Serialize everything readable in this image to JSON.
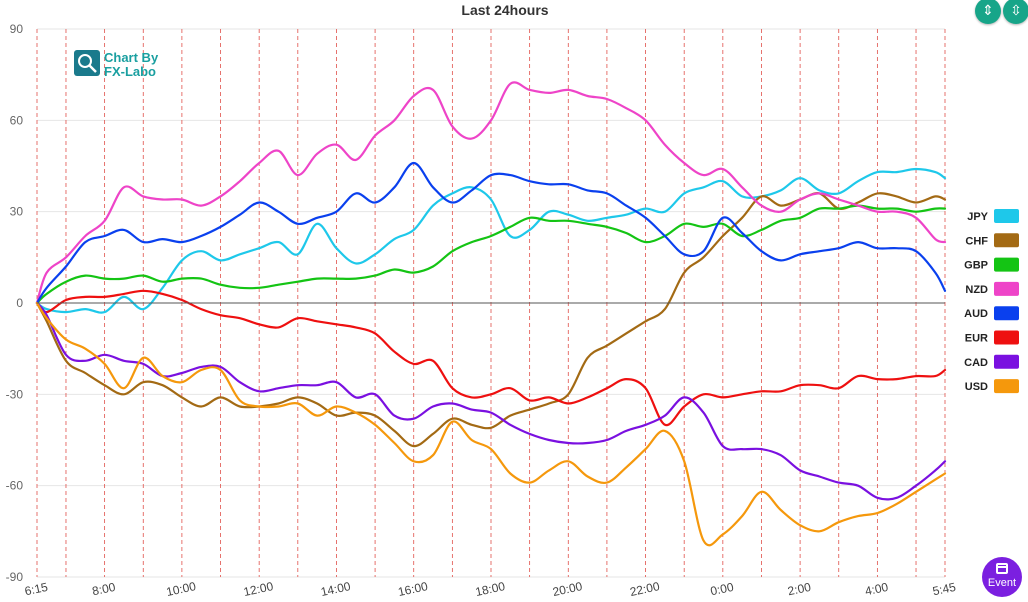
{
  "toolbar": {
    "collapse_icon": "compress-vertical-icon",
    "expand_icon": "expand-vertical-icon"
  },
  "event_button": {
    "label": "Event",
    "icon": "calendar-icon"
  },
  "watermark": {
    "line1": "Chart By",
    "line2": "FX-Labo"
  },
  "chart_data": {
    "type": "line",
    "title": "Last 24hours",
    "ylim": [
      -90,
      90
    ],
    "yticks": [
      90,
      60,
      30,
      0,
      -30,
      -60,
      -90
    ],
    "xlim": [
      6.25,
      29.75
    ],
    "xticks": [
      {
        "value": 6.25,
        "label": "6:15"
      },
      {
        "value": 8,
        "label": "8:00"
      },
      {
        "value": 10,
        "label": "10:00"
      },
      {
        "value": 12,
        "label": "12:00"
      },
      {
        "value": 14,
        "label": "14:00"
      },
      {
        "value": 16,
        "label": "16:00"
      },
      {
        "value": 18,
        "label": "18:00"
      },
      {
        "value": 20,
        "label": "20:00"
      },
      {
        "value": 22,
        "label": "22:00"
      },
      {
        "value": 24,
        "label": "0:00"
      },
      {
        "value": 26,
        "label": "2:00"
      },
      {
        "value": 28,
        "label": "4:00"
      },
      {
        "value": 29.75,
        "label": "5:45"
      }
    ],
    "vlines": [
      6.25,
      7,
      8,
      9,
      10,
      11,
      12,
      13,
      14,
      15,
      16,
      17,
      18,
      19,
      20,
      21,
      22,
      23,
      24,
      25,
      26,
      27,
      28,
      29,
      29.75
    ],
    "grid": true,
    "legend_position": "right",
    "x": [
      6.25,
      6.5,
      7,
      7.5,
      8,
      8.5,
      9,
      9.5,
      10,
      10.5,
      11,
      11.5,
      12,
      12.5,
      13,
      13.5,
      14,
      14.5,
      15,
      15.5,
      16,
      16.5,
      17,
      17.5,
      18,
      18.5,
      19,
      19.5,
      20,
      20.5,
      21,
      21.5,
      22,
      22.5,
      23,
      23.5,
      24,
      24.5,
      25,
      25.5,
      26,
      26.5,
      27,
      27.5,
      28,
      28.5,
      29,
      29.5,
      29.75
    ],
    "series": [
      {
        "name": "JPY",
        "color": "#1ec8ea",
        "values": [
          0,
          -2,
          -3,
          -2,
          -3,
          2,
          -2,
          5,
          14,
          17,
          14,
          16,
          18,
          20,
          16,
          26,
          18,
          13,
          16,
          21,
          24,
          32,
          36,
          38,
          34,
          22,
          24,
          30,
          29,
          27,
          28,
          29,
          31,
          30,
          36,
          38,
          40,
          35,
          35,
          37,
          41,
          37,
          36,
          40,
          43,
          43,
          44,
          43,
          41
        ]
      },
      {
        "name": "CHF",
        "color": "#a36a14",
        "values": [
          0,
          -6,
          -19,
          -23,
          -27,
          -30,
          -26,
          -27,
          -31,
          -34,
          -31,
          -34,
          -34,
          -33,
          -31,
          -33,
          -37,
          -36,
          -37,
          -42,
          -47,
          -43,
          -38,
          -40,
          -41,
          -37,
          -35,
          -33,
          -30,
          -18,
          -14,
          -10,
          -6,
          -2,
          10,
          15,
          22,
          28,
          35,
          32,
          34,
          36,
          31,
          33,
          36,
          35,
          33,
          35,
          34
        ]
      },
      {
        "name": "GBP",
        "color": "#14c414",
        "values": [
          0,
          3,
          7,
          9,
          8,
          8,
          9,
          7,
          8,
          8,
          6,
          5,
          5,
          6,
          7,
          8,
          8,
          8,
          9,
          11,
          10,
          12,
          17,
          20,
          22,
          25,
          28,
          27,
          27,
          26,
          25,
          23,
          20,
          22,
          26,
          25,
          26,
          22,
          24,
          27,
          28,
          31,
          31,
          32,
          31,
          31,
          30,
          31,
          31
        ]
      },
      {
        "name": "NZD",
        "color": "#ee44c8",
        "values": [
          0,
          10,
          15,
          22,
          27,
          38,
          35,
          34,
          34,
          32,
          35,
          40,
          46,
          50,
          42,
          49,
          52,
          47,
          55,
          60,
          68,
          70,
          58,
          54,
          60,
          72,
          70,
          69,
          70,
          68,
          67,
          64,
          60,
          52,
          46,
          42,
          44,
          38,
          32,
          30,
          34,
          36,
          34,
          32,
          30,
          30,
          28,
          21,
          20
        ]
      },
      {
        "name": "AUD",
        "color": "#0a40ee",
        "values": [
          0,
          5,
          12,
          20,
          22,
          24,
          20,
          21,
          20,
          22,
          25,
          29,
          33,
          30,
          26,
          28,
          30,
          36,
          33,
          38,
          46,
          38,
          33,
          37,
          42,
          42,
          40,
          39,
          39,
          37,
          36,
          32,
          28,
          22,
          16,
          17,
          28,
          23,
          17,
          14,
          16,
          17,
          18,
          20,
          18,
          18,
          17,
          10,
          4
        ]
      },
      {
        "name": "EUR",
        "color": "#ee1010",
        "values": [
          0,
          -3,
          1,
          2,
          2,
          3,
          4,
          3,
          1,
          -2,
          -4,
          -5,
          -7,
          -8,
          -5,
          -6,
          -7,
          -8,
          -10,
          -16,
          -20,
          -19,
          -28,
          -31,
          -30,
          -28,
          -32,
          -31,
          -33,
          -31,
          -28,
          -25,
          -28,
          -40,
          -34,
          -30,
          -31,
          -30,
          -29,
          -29,
          -27,
          -27,
          -28,
          -24,
          -25,
          -25,
          -24,
          -24,
          -22
        ]
      },
      {
        "name": "CAD",
        "color": "#7a10e0",
        "values": [
          0,
          -4,
          -17,
          -19,
          -17,
          -19,
          -20,
          -24,
          -23,
          -21,
          -21,
          -26,
          -29,
          -28,
          -27,
          -27,
          -26,
          -31,
          -30,
          -37,
          -38,
          -34,
          -33,
          -35,
          -36,
          -40,
          -43,
          -45,
          -46,
          -46,
          -45,
          -42,
          -40,
          -37,
          -31,
          -36,
          -47,
          -48,
          -48,
          -50,
          -55,
          -57,
          -59,
          -60,
          -64,
          -64,
          -60,
          -55,
          -52
        ]
      },
      {
        "name": "USD",
        "color": "#f5980c",
        "values": [
          0,
          -5,
          -12,
          -15,
          -20,
          -28,
          -18,
          -24,
          -26,
          -22,
          -22,
          -32,
          -34,
          -34,
          -33,
          -37,
          -34,
          -36,
          -40,
          -46,
          -52,
          -50,
          -39,
          -45,
          -48,
          -56,
          -59,
          -55,
          -52,
          -57,
          -59,
          -54,
          -48,
          -42,
          -52,
          -78,
          -76,
          -70,
          -62,
          -68,
          -73,
          -75,
          -72,
          -70,
          -69,
          -66,
          -62,
          -58,
          -56
        ]
      }
    ]
  }
}
